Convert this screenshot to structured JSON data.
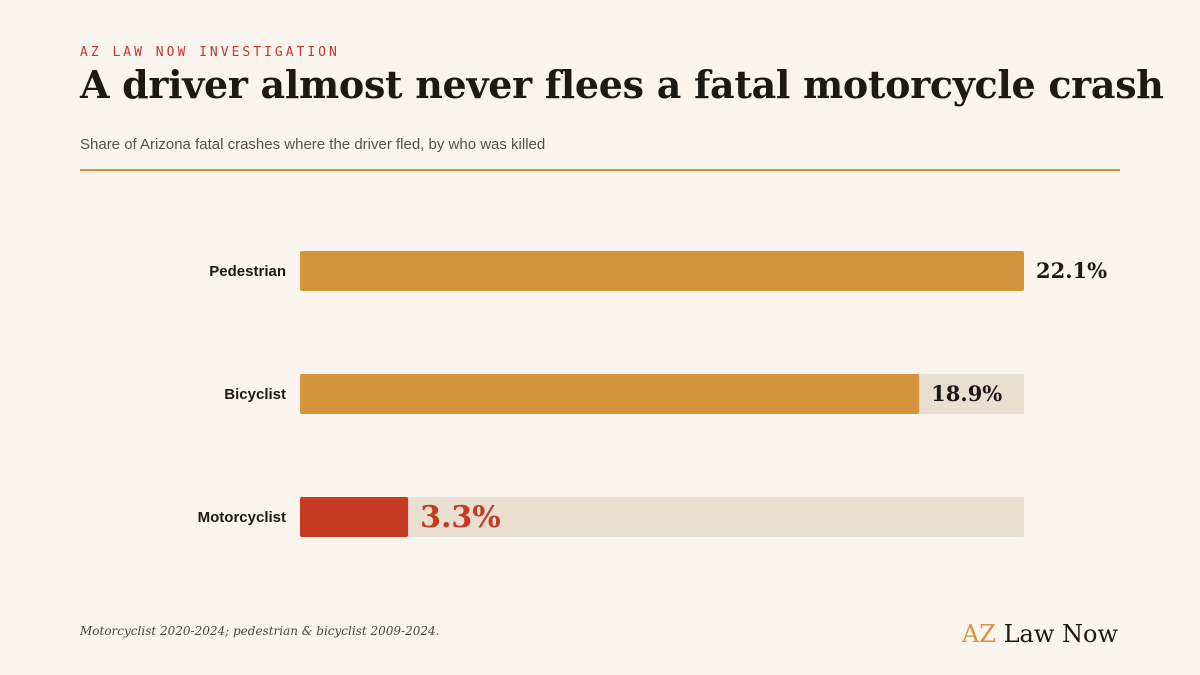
{
  "header": {
    "kicker": "AZ LAW NOW INVESTIGATION",
    "title": "A driver almost never flees a fatal motorcycle crash",
    "subtitle": "Share of Arizona fatal crashes where the driver fled, by who was killed"
  },
  "chart_data": {
    "type": "bar",
    "orientation": "horizontal",
    "categories": [
      "Pedestrian",
      "Bicyclist",
      "Motorcyclist"
    ],
    "values": [
      22.1,
      18.9,
      3.3
    ],
    "value_labels": [
      "22.1%",
      "18.9%",
      "3.3%"
    ],
    "unit": "%",
    "xlim": [
      0,
      22.1
    ],
    "grid": false,
    "legend": "none",
    "colors": {
      "bar": "#d4943a",
      "highlight": "#c63a22",
      "track": "#e8dfd0"
    },
    "highlight_category": "Motorcyclist"
  },
  "footer": {
    "source_note": "Motorcyclist 2020-2024; pedestrian & bicyclist 2009-2024.",
    "brand_az": "AZ",
    "brand_rest": "Law Now"
  }
}
